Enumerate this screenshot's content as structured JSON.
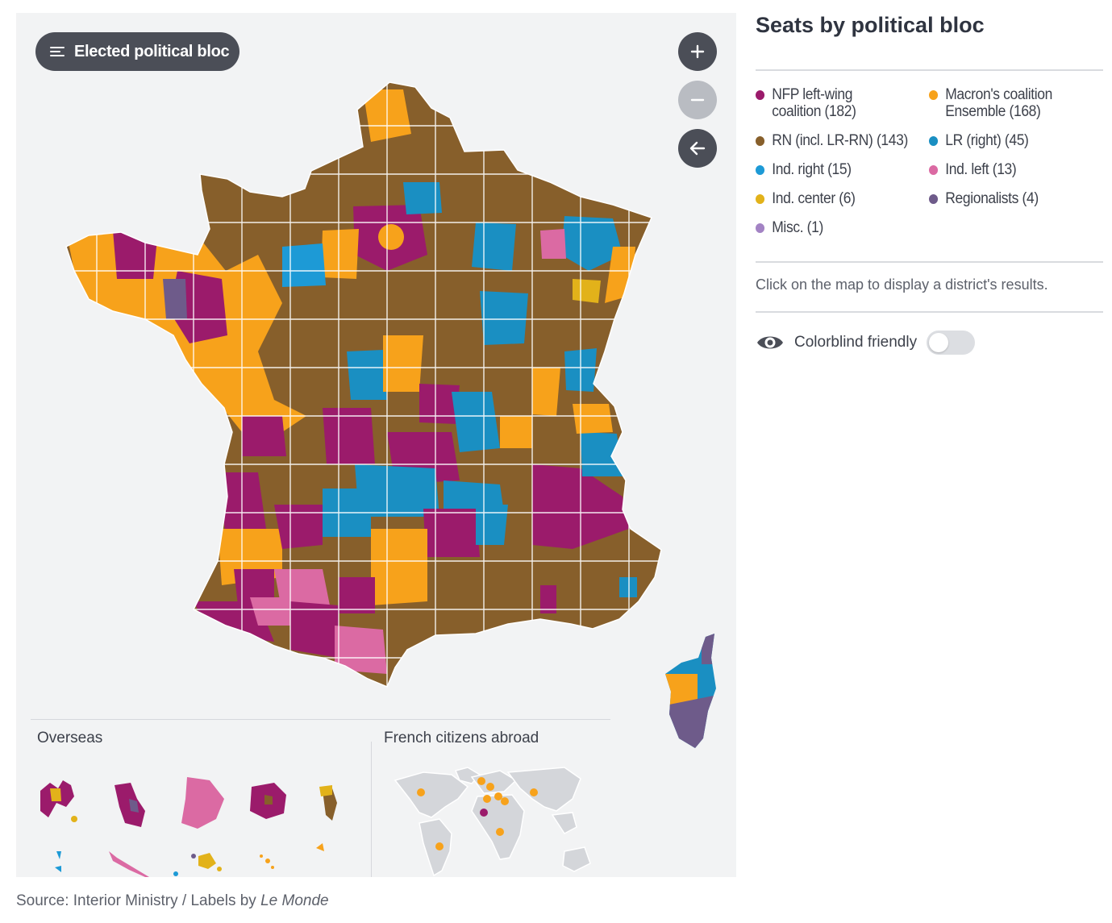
{
  "map_control": {
    "label": "Elected political bloc"
  },
  "zoom_controls": {
    "zoom_in": "+",
    "zoom_out": "−",
    "back": "←"
  },
  "sections": {
    "overseas": "Overseas",
    "abroad": "French citizens abroad"
  },
  "source": {
    "prefix": "Source: Interior Ministry / Labels by ",
    "publication": "Le Monde"
  },
  "legend": {
    "title": "Seats by political bloc",
    "items": [
      {
        "label_line1": "NFP left-wing",
        "label_line2": "coalition (182)",
        "color": "#9b1b6b"
      },
      {
        "label_line1": "Macron's coalition",
        "label_line2": "Ensemble (168)",
        "color": "#f7a21b"
      },
      {
        "label_line1": "RN (incl. LR-RN) (143)",
        "label_line2": "",
        "color": "#875f2b"
      },
      {
        "label_line1": "LR (right) (45)",
        "label_line2": "",
        "color": "#1a8fc2"
      },
      {
        "label_line1": "Ind. right (15)",
        "label_line2": "",
        "color": "#1d9ad6"
      },
      {
        "label_line1": "Ind. left (13)",
        "label_line2": "",
        "color": "#db6aa3"
      },
      {
        "label_line1": "Ind. center (6)",
        "label_line2": "",
        "color": "#e2b21a"
      },
      {
        "label_line1": "Regionalists (4)",
        "label_line2": "",
        "color": "#6e5b8a"
      },
      {
        "label_line1": "Misc. (1)",
        "label_line2": "",
        "color": "#a383c4"
      }
    ],
    "hint": "Click on the map to display a district's results.",
    "colorblind_label": "Colorblind friendly",
    "colorblind_on": false
  },
  "colors": {
    "panel_bg": "#f2f3f4",
    "button_dark": "#4b4e57",
    "world_land": "#d4d6da"
  }
}
